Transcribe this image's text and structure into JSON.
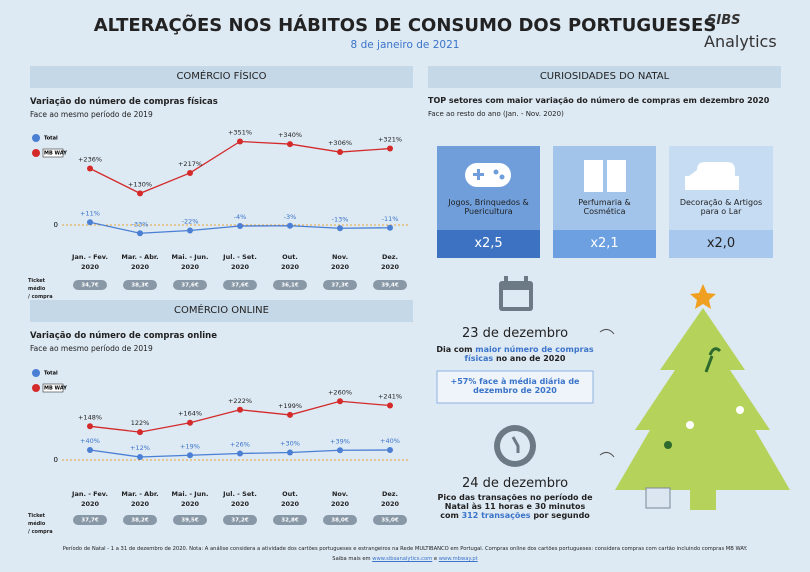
{
  "header": {
    "title": "ALTERAÇÕES NOS HÁBITOS DE CONSUMO DOS PORTUGUESES",
    "date": "8 de janeiro de 2021",
    "logo_top": "SIBS",
    "logo_bottom": "Analytics"
  },
  "chart_data": [
    {
      "type": "line",
      "section": "COMÉRCIO FÍSICO",
      "title": "Variação do número de compras físicas",
      "subtitle": "Face ao mesmo período de 2019",
      "categories": [
        "Jan. - Fev.\n2020",
        "Mar. - Abr.\n2020",
        "Mai. - Jun.\n2020",
        "Jul. - Set.\n2020",
        "Out.\n2020",
        "Nov.\n2020",
        "Dez.\n2020"
      ],
      "series": [
        {
          "name": "Total",
          "color": "#4a7fd4",
          "values": [
            11,
            -33,
            -22,
            -4,
            -3,
            -13,
            -11
          ],
          "value_labels": [
            "+11%",
            "-33%",
            "-22%",
            "-4%",
            "-3%",
            "-13%",
            "-11%"
          ]
        },
        {
          "name": "MB WAY",
          "color": "#d42a2a",
          "axis": "y2",
          "values": [
            236,
            130,
            217,
            351,
            340,
            306,
            321
          ],
          "value_labels": [
            "+236%",
            "+130%",
            "+217%",
            "+351%",
            "+340%",
            "+306%",
            "+321%"
          ]
        }
      ],
      "ylim": [
        -80,
        380
      ],
      "yticks": [
        0
      ],
      "y2lim": [
        -90,
        400
      ],
      "y2ticks": [],
      "ticket": {
        "label": "Ticket médio\n/ compra",
        "values": [
          "34,7€",
          "38,3€",
          "37,6€",
          "37,6€",
          "36,1€",
          "37,3€",
          "39,4€"
        ]
      }
    },
    {
      "type": "line",
      "section": "COMÉRCIO ONLINE",
      "title": "Variação do número de compras online",
      "subtitle": "Face ao mesmo período de 2019",
      "categories": [
        "Jan. - Fev.\n2020",
        "Mar. - Abr.\n2020",
        "Mai. - Jun.\n2020",
        "Jul. - Set.\n2020",
        "Out.\n2020",
        "Nov.\n2020",
        "Dez.\n2020"
      ],
      "series": [
        {
          "name": "Total",
          "color": "#4a7fd4",
          "values": [
            40,
            12,
            19,
            26,
            30,
            39,
            40
          ],
          "value_labels": [
            "+40%",
            "+12%",
            "+19%",
            "+26%",
            "+30%",
            "+39%",
            "+40%"
          ]
        },
        {
          "name": "MB WAY",
          "color": "#d42a2a",
          "axis": "y2",
          "values": [
            148,
            122,
            164,
            222,
            199,
            260,
            241
          ],
          "value_labels": [
            "+148%",
            "122%",
            "+164%",
            "+222%",
            "+199%",
            "+260%",
            "+241%"
          ]
        }
      ],
      "ylim": [
        -60,
        360
      ],
      "yticks": [
        0
      ],
      "y2lim": [
        -70,
        400
      ],
      "y2ticks": [],
      "ticket": {
        "label": "Ticket médio\n/ compra",
        "values": [
          "37,7€",
          "38,2€",
          "39,5€",
          "37,2€",
          "32,8€",
          "38,0€",
          "35,0€"
        ]
      }
    }
  ],
  "christmas": {
    "section": "CURIOSIDADES DO NATAL",
    "title": "TOP setores com maior variação do número de compras em dezembro 2020",
    "subtitle": "Face ao resto do ano (Jan. - Nov. 2020)",
    "cards": [
      {
        "label": "Jogos, Brinquedos & Puericultura",
        "value": "x2,5"
      },
      {
        "label": "Perfumaria & Cosmética",
        "value": "x2,1"
      },
      {
        "label": "Decoração & Artigos para o Lar",
        "value": "x2,0"
      }
    ],
    "day1": {
      "date": "23 de dezembro",
      "before": "Dia com",
      "highlight": "maior número de compras físicas",
      "after": "no ano de 2020",
      "box": "+57% face à média diária de dezembro de 2020"
    },
    "day2": {
      "date": "24 de dezembro",
      "before": "Pico das transações no período de Natal às 11 horas e 30 minutos com",
      "highlight": "312 transações",
      "after": "por segundo"
    }
  },
  "footer": {
    "note": "Período de Natal - 1 a 31 de dezembro de 2020. Nota: A análise considera a atividade dos cartões portugueses e estrangeiros na Rede MULTIBANCO em Portugal. Compras online dos cartões portugueses: considera compras com cartão incluindo compras MB WAY.",
    "more": "Saiba mais em",
    "link1": "www.sibsanalytics.com",
    "and": "e",
    "link2": "www.mbway.pt"
  }
}
